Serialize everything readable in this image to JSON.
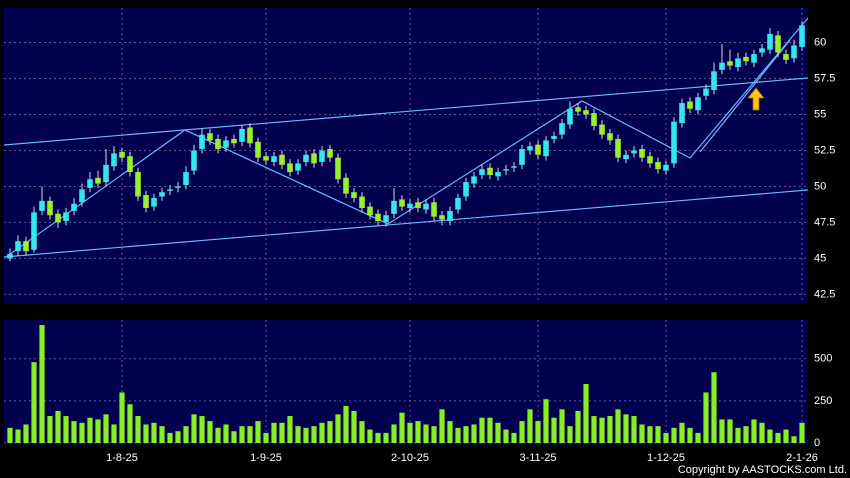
{
  "chart_data": {
    "type": "candlestick",
    "copyright": "Copyright by AASTOCKS.com Ltd.",
    "up_color": "#33e6f0",
    "down_color": "#99f02a",
    "volume_color": "#88f020",
    "grid": true,
    "categories": [
      null,
      null,
      null,
      null,
      null,
      null,
      null,
      null,
      null,
      null,
      null,
      null,
      null,
      null,
      "1-8-25",
      null,
      null,
      null,
      null,
      null,
      null,
      null,
      null,
      null,
      null,
      null,
      null,
      null,
      null,
      null,
      null,
      null,
      "1-9-25",
      null,
      null,
      null,
      null,
      null,
      null,
      null,
      null,
      null,
      null,
      null,
      null,
      null,
      null,
      null,
      null,
      null,
      "2-10-25",
      null,
      null,
      null,
      null,
      null,
      null,
      null,
      null,
      null,
      null,
      null,
      null,
      null,
      null,
      null,
      "3-11-25",
      null,
      null,
      null,
      null,
      null,
      null,
      null,
      null,
      null,
      null,
      null,
      null,
      null,
      null,
      null,
      "1-12-25",
      null,
      null,
      null,
      null,
      null,
      null,
      null,
      null,
      null,
      null,
      null,
      null,
      null,
      null,
      null,
      null,
      "2-1-26"
    ],
    "open": [
      45.0,
      45.5,
      46.2,
      45.6,
      48.3,
      49.0,
      48.1,
      47.6,
      48.3,
      48.9,
      49.9,
      50.6,
      50.3,
      51.4,
      52.4,
      52.1,
      51.0,
      49.4,
      48.6,
      49.3,
      49.7,
      49.9,
      50.1,
      51.1,
      52.6,
      53.7,
      53.3,
      52.7,
      53.3,
      53.1,
      54.1,
      53.1,
      52.1,
      51.7,
      52.2,
      51.6,
      51.1,
      51.7,
      52.3,
      51.7,
      52.6,
      52.0,
      50.6,
      49.6,
      49.3,
      48.6,
      48.1,
      47.5,
      48.1,
      49.1,
      48.5,
      48.9,
      48.4,
      48.9,
      48.0,
      47.6,
      48.4,
      49.3,
      50.2,
      50.8,
      51.3,
      50.7,
      51.1,
      51.3,
      51.5,
      52.5,
      52.9,
      52.1,
      53.3,
      53.6,
      54.3,
      55.5,
      55.3,
      55.1,
      54.3,
      53.7,
      53.3,
      51.9,
      52.3,
      52.6,
      52.1,
      51.7,
      51.1,
      51.6,
      54.4,
      55.9,
      55.3,
      56.3,
      56.7,
      58.1,
      58.7,
      58.3,
      59.0,
      58.6,
      59.3,
      59.5,
      60.5,
      59.2,
      58.9,
      59.7
    ],
    "high": [
      45.7,
      46.6,
      46.5,
      48.6,
      50.0,
      49.3,
      48.4,
      48.5,
      49.2,
      50.2,
      51.0,
      51.1,
      52.6,
      52.8,
      52.7,
      52.4,
      51.3,
      49.7,
      49.5,
      49.9,
      50.1,
      50.3,
      51.4,
      52.9,
      54.0,
      54.0,
      53.6,
      53.5,
      53.6,
      54.3,
      54.4,
      53.4,
      52.4,
      52.4,
      52.5,
      51.9,
      51.9,
      52.5,
      52.6,
      52.8,
      52.9,
      52.3,
      50.9,
      49.9,
      49.6,
      48.9,
      48.4,
      48.3,
      49.9,
      49.4,
      49.1,
      49.2,
      49.1,
      49.2,
      48.3,
      48.6,
      49.5,
      50.6,
      51.0,
      51.5,
      51.6,
      51.3,
      51.5,
      51.7,
      52.9,
      53.1,
      53.2,
      53.5,
      53.8,
      54.7,
      55.9,
      55.8,
      55.6,
      55.4,
      54.6,
      54.0,
      53.6,
      52.5,
      52.8,
      52.9,
      52.4,
      52.0,
      51.8,
      54.8,
      56.1,
      56.2,
      56.5,
      57.1,
      58.6,
      59.9,
      59.5,
      59.3,
      59.3,
      59.5,
      59.9,
      61.0,
      60.8,
      59.5,
      60.2,
      61.5
    ],
    "low": [
      44.8,
      45.2,
      45.2,
      45.4,
      48.0,
      47.7,
      47.1,
      47.3,
      48.0,
      48.6,
      49.6,
      49.9,
      50.0,
      51.1,
      51.7,
      50.7,
      49.0,
      48.2,
      48.3,
      49.0,
      49.4,
      49.6,
      49.8,
      50.8,
      52.3,
      52.9,
      52.3,
      52.4,
      52.7,
      52.8,
      52.7,
      51.7,
      51.5,
      51.4,
      51.2,
      50.7,
      50.8,
      51.4,
      51.3,
      51.4,
      51.7,
      50.2,
      49.2,
      48.9,
      48.2,
      47.7,
      47.3,
      47.2,
      47.8,
      48.3,
      48.2,
      48.2,
      48.1,
      47.6,
      47.3,
      47.3,
      48.1,
      49.0,
      49.9,
      50.5,
      50.5,
      50.4,
      50.8,
      51.0,
      51.2,
      52.2,
      51.9,
      51.8,
      53.0,
      53.3,
      54.0,
      54.9,
      54.7,
      53.9,
      53.3,
      52.9,
      51.7,
      51.6,
      52.0,
      51.7,
      51.3,
      50.9,
      50.8,
      51.3,
      54.1,
      55.1,
      55.0,
      56.0,
      56.4,
      57.8,
      58.1,
      58.0,
      58.4,
      58.3,
      59.0,
      59.2,
      59.0,
      58.5,
      58.6,
      59.4
    ],
    "close": [
      45.3,
      46.2,
      45.5,
      48.2,
      49.0,
      48.0,
      47.5,
      48.2,
      48.8,
      49.8,
      50.5,
      50.2,
      51.5,
      52.3,
      52.0,
      51.0,
      49.3,
      48.5,
      49.2,
      49.6,
      49.8,
      50.0,
      51.0,
      52.5,
      53.6,
      53.2,
      52.6,
      53.2,
      53.0,
      54.0,
      53.0,
      52.0,
      51.8,
      52.1,
      51.5,
      51.0,
      51.6,
      52.2,
      51.6,
      52.5,
      52.0,
      50.5,
      49.5,
      49.2,
      48.5,
      48.0,
      47.6,
      48.0,
      49.0,
      48.6,
      48.8,
      48.5,
      48.8,
      47.9,
      47.7,
      48.3,
      49.2,
      50.3,
      50.7,
      51.2,
      50.8,
      51.0,
      51.2,
      51.4,
      52.6,
      52.8,
      52.2,
      53.2,
      53.5,
      54.4,
      55.4,
      55.2,
      55.0,
      54.2,
      53.6,
      53.2,
      52.0,
      52.2,
      52.5,
      52.0,
      51.6,
      51.2,
      51.5,
      54.5,
      55.8,
      55.4,
      56.2,
      56.8,
      58.0,
      58.6,
      58.4,
      58.9,
      58.7,
      59.2,
      59.6,
      60.6,
      59.3,
      58.8,
      59.8,
      61.2
    ],
    "volume": [
      90,
      80,
      110,
      480,
      700,
      160,
      190,
      160,
      130,
      120,
      150,
      140,
      170,
      110,
      300,
      230,
      160,
      110,
      120,
      100,
      60,
      70,
      100,
      170,
      160,
      130,
      90,
      110,
      70,
      100,
      100,
      130,
      60,
      120,
      120,
      160,
      100,
      90,
      100,
      120,
      130,
      170,
      220,
      190,
      130,
      80,
      60,
      60,
      110,
      180,
      120,
      130,
      110,
      100,
      200,
      130,
      90,
      100,
      110,
      150,
      150,
      120,
      80,
      60,
      130,
      200,
      130,
      260,
      150,
      200,
      100,
      190,
      350,
      160,
      150,
      160,
      200,
      170,
      160,
      110,
      100,
      100,
      60,
      90,
      120,
      90,
      60,
      300,
      420,
      140,
      140,
      90,
      100,
      140,
      120,
      80,
      60,
      80,
      40,
      120
    ],
    "ylim": [
      41.9,
      62.4
    ],
    "yticks": [
      42.5,
      45,
      47.5,
      50,
      52.5,
      55,
      57.5,
      60
    ],
    "y2lim": [
      0,
      730
    ],
    "y2ticks": [
      0,
      250,
      500
    ]
  }
}
